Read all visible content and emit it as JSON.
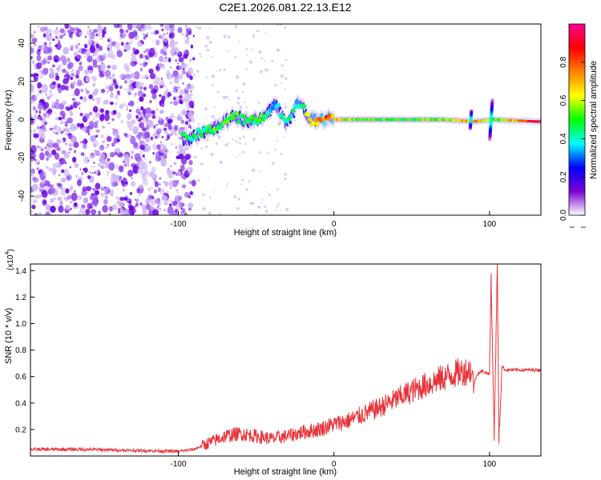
{
  "title": "C2E1.2026.081.22.13.E12",
  "chart_data": [
    {
      "type": "heatmap",
      "xlabel": "Height of straight line (km)",
      "ylabel": "Frequency (Hz)",
      "xlim": [
        -195,
        133
      ],
      "ylim": [
        -50,
        50
      ],
      "x_ticks": [
        -100,
        0,
        100
      ],
      "y_ticks": [
        -40,
        -20,
        0,
        20,
        40
      ],
      "colorbar": {
        "label": "Normalized spectral amplitude",
        "range": [
          0.0,
          1.0
        ],
        "ticks": [
          0.0,
          0.2,
          0.4,
          0.6,
          0.8
        ],
        "colormap": [
          "#ffffff",
          "#7b00d4",
          "#0000ff",
          "#00ffff",
          "#00ff00",
          "#ffff00",
          "#ff8000",
          "#ff0000",
          "#ff0090"
        ]
      },
      "noise_region_x": [
        -195,
        -90
      ],
      "ridge_points": [
        {
          "x": -95,
          "f": -10,
          "amp": 0.45
        },
        {
          "x": -85,
          "f": -7,
          "amp": 0.45
        },
        {
          "x": -75,
          "f": -4,
          "amp": 0.5
        },
        {
          "x": -65,
          "f": 2,
          "amp": 0.5
        },
        {
          "x": -55,
          "f": -1,
          "amp": 0.45
        },
        {
          "x": -45,
          "f": 1,
          "amp": 0.5
        },
        {
          "x": -38,
          "f": 8,
          "amp": 0.35
        },
        {
          "x": -30,
          "f": -2,
          "amp": 0.45
        },
        {
          "x": -22,
          "f": 10,
          "amp": 0.35
        },
        {
          "x": -15,
          "f": 0,
          "amp": 0.65
        },
        {
          "x": -5,
          "f": 0,
          "amp": 0.8
        },
        {
          "x": 10,
          "f": 0,
          "amp": 0.55
        },
        {
          "x": 40,
          "f": 0,
          "amp": 0.5
        },
        {
          "x": 70,
          "f": 0,
          "amp": 0.55
        },
        {
          "x": 90,
          "f": -1,
          "amp": 0.75
        },
        {
          "x": 103,
          "f": 0,
          "amp": 0.5
        },
        {
          "x": 130,
          "f": -1,
          "amp": 0.95
        }
      ]
    },
    {
      "type": "line",
      "xlabel": "Height of straight line (km)",
      "ylabel": "SNR (10 * v/v)",
      "y_multiplier": "(x10",
      "y_multiplier_exp": "4",
      "xlim": [
        -195,
        133
      ],
      "ylim": [
        0,
        14500
      ],
      "x_ticks": [
        -100,
        0,
        100
      ],
      "y_ticks": [
        2000,
        4000,
        6000,
        8000,
        10000,
        12000,
        14000
      ],
      "y_tick_labels": [
        "0.2",
        "0.4",
        "0.6",
        "0.8",
        "1.0",
        "1.2",
        "1.4"
      ],
      "color": "#e8333a",
      "series": [
        {
          "x": [
            -195,
            -160,
            -120,
            -100,
            -90,
            -80,
            -70,
            -60,
            -50,
            -40,
            -30,
            -20,
            -10,
            0,
            10,
            20,
            30,
            40,
            50,
            60,
            70,
            80,
            88,
            90,
            92,
            95,
            100,
            101,
            103,
            105,
            106,
            108,
            110,
            120,
            133
          ],
          "y": [
            500,
            500,
            400,
            350,
            500,
            1000,
            1500,
            1700,
            1500,
            1300,
            1500,
            1800,
            2000,
            2400,
            2700,
            3200,
            3700,
            4300,
            4900,
            5400,
            5900,
            6300,
            6500,
            5400,
            6200,
            6400,
            6200,
            13500,
            1500,
            14500,
            1200,
            6800,
            6500,
            6500,
            6500
          ]
        }
      ]
    }
  ]
}
